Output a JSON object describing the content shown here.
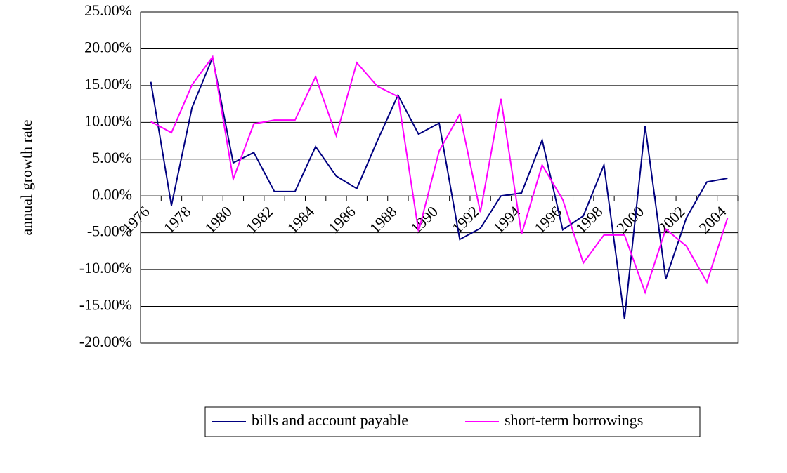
{
  "chart_data": {
    "type": "line",
    "y_label": "annual growth rate",
    "categories": [
      "1976",
      null,
      "1978",
      null,
      "1980",
      null,
      "1982",
      null,
      "1984",
      null,
      "1986",
      null,
      "1988",
      null,
      "1990",
      null,
      "1992",
      null,
      "1994",
      null,
      "1996",
      null,
      "1998",
      null,
      "2000",
      null,
      "2002",
      null,
      "2004"
    ],
    "series": [
      {
        "name": "bills and account payable",
        "color": "#000080",
        "values": [
          15.5,
          -1.3,
          12,
          18.8,
          4.5,
          5.9,
          0.6,
          0.6,
          6.7,
          2.7,
          1.0,
          7.5,
          13.7,
          8.4,
          9.9,
          -5.9,
          -4.4,
          0,
          0.4,
          7.6,
          -4.6,
          -2.7,
          4.2,
          -16.7,
          9.5,
          -11.3,
          -3.0,
          1.9,
          2.4
        ]
      },
      {
        "name": "short-term borrowings",
        "color": "#ff00ff",
        "values": [
          10.1,
          8.6,
          15.1,
          18.9,
          2.3,
          9.8,
          10.3,
          10.3,
          16.2,
          8.2,
          18.1,
          14.9,
          13.5,
          -4.8,
          6.1,
          11.1,
          -2.2,
          13.2,
          -5.2,
          4.2,
          -0.5,
          -9.1,
          -5.3,
          -5.3,
          -13.1,
          -4.5,
          -6.8,
          -11.7,
          -3.0
        ]
      }
    ],
    "ylim": [
      -20,
      25
    ],
    "yticks": [
      {
        "value": -20,
        "label": "-20.00%"
      },
      {
        "value": -15,
        "label": "-15.00%"
      },
      {
        "value": -10,
        "label": "-10.00%"
      },
      {
        "value": -5,
        "label": "-5.00%"
      },
      {
        "value": 0,
        "label": "0.00%"
      },
      {
        "value": 5,
        "label": "5.00%"
      },
      {
        "value": 10,
        "label": "10.00%"
      },
      {
        "value": 15,
        "label": "15.00%"
      },
      {
        "value": 20,
        "label": "20.00%"
      },
      {
        "value": 25,
        "label": "25.00%"
      }
    ],
    "grid": true,
    "legend": "bottom"
  }
}
